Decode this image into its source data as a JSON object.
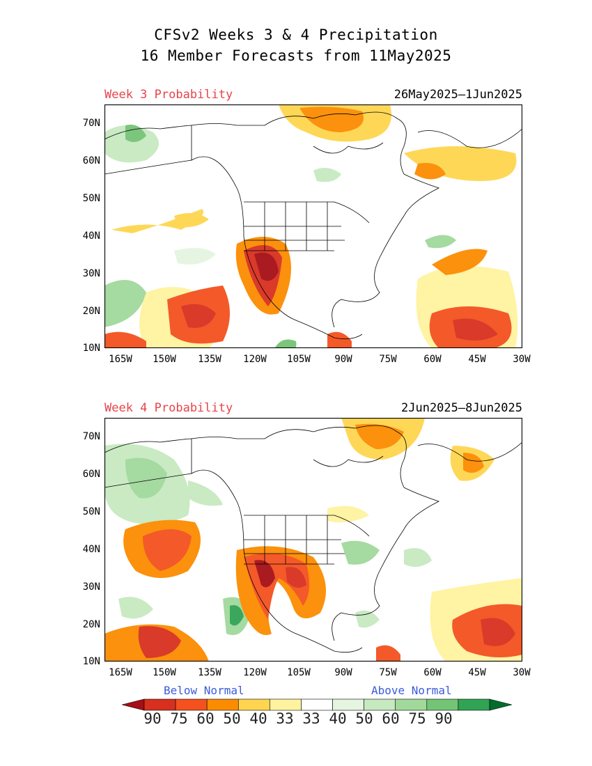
{
  "title_line1": "CFSv2 Weeks 3 & 4 Precipitation",
  "title_line2": "16 Member Forecasts from 11May2025",
  "panels": [
    {
      "label_left": "Week 3 Probability",
      "label_right": "26May2025—1Jun2025"
    },
    {
      "label_left": "Week 4 Probability",
      "label_right": "2Jun2025—8Jun2025"
    }
  ],
  "axes": {
    "lat_labels": [
      "70N",
      "60N",
      "50N",
      "40N",
      "30N",
      "20N",
      "10N"
    ],
    "lon_labels": [
      "165W",
      "150W",
      "135W",
      "120W",
      "105W",
      "90W",
      "75W",
      "60W",
      "45W",
      "30W"
    ],
    "lat_range": [
      10,
      75
    ],
    "lon_range": [
      -168,
      -30
    ]
  },
  "legend": {
    "below": "Below Normal",
    "above": "Above Normal",
    "labels": [
      "90",
      "75",
      "60",
      "50",
      "40",
      "33",
      "33",
      "40",
      "50",
      "60",
      "75",
      "90"
    ],
    "colors": [
      "#a50f15",
      "#d7301f",
      "#f4511e",
      "#fb8c00",
      "#ffd54f",
      "#fff3a0",
      "#ffffff",
      "#e5f5e0",
      "#c7e9c0",
      "#a1d99b",
      "#74c476",
      "#31a354",
      "#006d2c"
    ]
  }
}
